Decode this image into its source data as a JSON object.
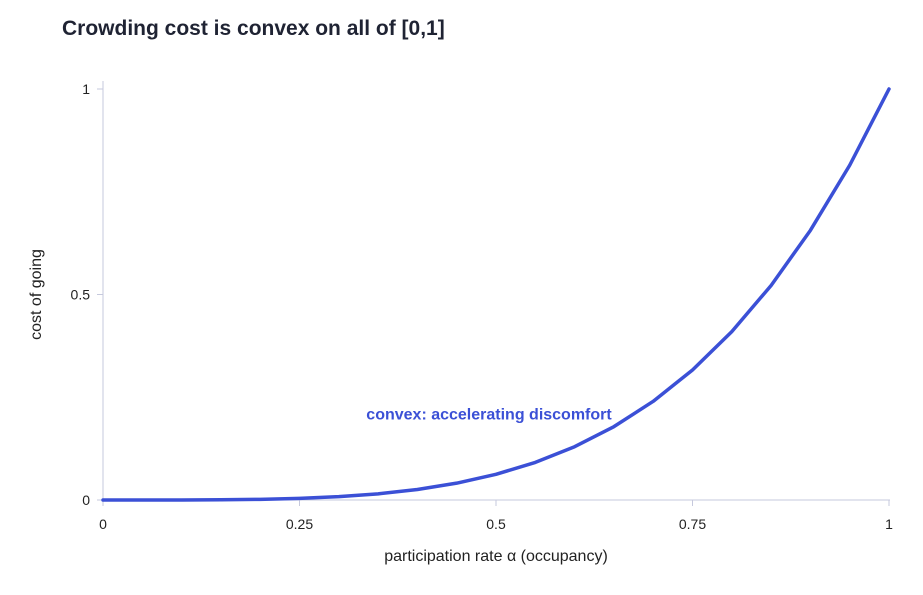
{
  "chart_data": {
    "type": "line",
    "title": "Crowding cost is convex on all of [0,1]",
    "xlabel": "participation rate α (occupancy)",
    "ylabel": "cost of going",
    "xlim": [
      0,
      1
    ],
    "ylim": [
      0,
      1
    ],
    "x_ticks": [
      "0",
      "0.25",
      "0.5",
      "0.75",
      "1"
    ],
    "y_ticks": [
      "0",
      "0.5",
      "1"
    ],
    "grid": false,
    "series": [
      {
        "color": "#3b50d6",
        "x": [
          0,
          0.05,
          0.1,
          0.15,
          0.2,
          0.25,
          0.3,
          0.35,
          0.4,
          0.45,
          0.5,
          0.55,
          0.6,
          0.65,
          0.7,
          0.75,
          0.8,
          0.85,
          0.9,
          0.95,
          1
        ],
        "y": [
          0,
          6.3e-06,
          0.0001,
          0.0005,
          0.0016,
          0.0039,
          0.0081,
          0.015,
          0.0256,
          0.041,
          0.0625,
          0.0915,
          0.1296,
          0.1785,
          0.2401,
          0.3164,
          0.4096,
          0.522,
          0.6561,
          0.8145,
          1
        ]
      }
    ],
    "annotations": [
      {
        "text": "convex: accelerating discomfort",
        "x": 0.335,
        "y": 0.21,
        "color": "#3b50d6"
      }
    ]
  }
}
